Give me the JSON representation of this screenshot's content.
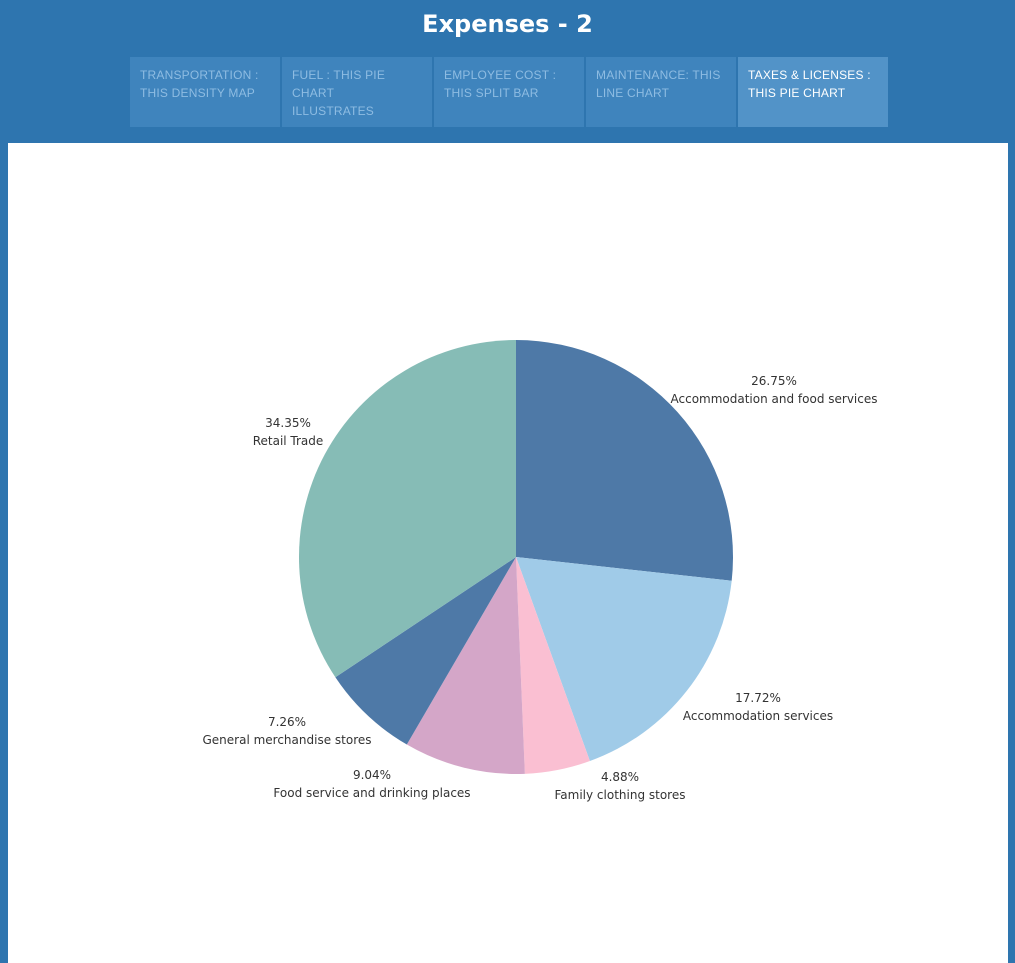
{
  "header": {
    "title": "Expenses - 2"
  },
  "tabs": [
    {
      "line1": "TRANSPORTATION :",
      "line2": "THIS DENSITY MAP",
      "active": false
    },
    {
      "line1": "FUEL : THIS PIE CHART",
      "line2": "ILLUSTRATES",
      "active": false
    },
    {
      "line1": "EMPLOYEE COST :",
      "line2": "THIS SPLIT BAR",
      "active": false
    },
    {
      "line1": "MAINTENANCE: THIS",
      "line2": "LINE CHART",
      "active": false
    },
    {
      "line1": "TAXES & LICENSES :",
      "line2": "THIS PIE CHART",
      "active": true
    }
  ],
  "colors": {
    "background": "#2e75af",
    "tab": "#3f84bd",
    "tab_active": "#5293c8"
  },
  "chart_data": {
    "type": "pie",
    "title": "",
    "start_angle_deg": 0,
    "direction": "clockwise",
    "slices": [
      {
        "label": "Accommodation and food services",
        "value": 26.75,
        "display": "26.75%",
        "color": "#4e79a7"
      },
      {
        "label": "Accommodation services",
        "value": 17.72,
        "display": "17.72%",
        "color": "#a0cbe8"
      },
      {
        "label": "Family clothing stores",
        "value": 4.88,
        "display": "4.88%",
        "color": "#fabfd2"
      },
      {
        "label": "Food service and drinking places",
        "value": 9.04,
        "display": "9.04%",
        "color": "#d4a6c8"
      },
      {
        "label": "General merchandise stores",
        "value": 7.26,
        "display": "7.26%",
        "color": "#4e79a7"
      },
      {
        "label": "Retail Trade",
        "value": 34.35,
        "display": "34.35%",
        "color": "#86bcb6"
      }
    ]
  }
}
